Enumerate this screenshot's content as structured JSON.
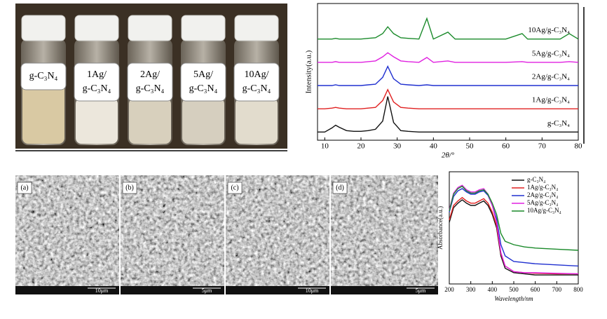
{
  "photo": {
    "labels": [
      [
        "g-C₃N₄"
      ],
      [
        "1Ag/",
        "g-C₃N₄"
      ],
      [
        "2Ag/",
        "g-C₃N₄"
      ],
      [
        "5Ag/",
        "g-C₃N₄"
      ],
      [
        "10Ag/",
        "g-C₃N₄"
      ]
    ]
  },
  "sem": {
    "panels": [
      {
        "label": "(a)",
        "scale": "10μm"
      },
      {
        "label": "(b)",
        "scale": "5μm"
      },
      {
        "label": "(c)",
        "scale": "10μm"
      },
      {
        "label": "(d)",
        "scale": "5μm"
      }
    ]
  },
  "chart_data": [
    {
      "type": "line",
      "x_label": "2θ/°",
      "y_label": "Intensity(a.u.)",
      "labels_inline": true,
      "xlim": [
        8,
        80
      ],
      "xticks": [
        10,
        20,
        30,
        40,
        50,
        60,
        70,
        80
      ],
      "ylim": [
        0,
        100
      ],
      "x": [
        8,
        10,
        12,
        13,
        14,
        16,
        18,
        20,
        22,
        24,
        26,
        27.4,
        29,
        31,
        33,
        36,
        38.2,
        40,
        44,
        46,
        50,
        55,
        60,
        64.5,
        66,
        70,
        75,
        77.5,
        80
      ],
      "series": [
        {
          "name": "10Ag/g-C₃N₄",
          "color": "#1a8a2a",
          "values": [
            74,
            74,
            74,
            74.5,
            74,
            74,
            74,
            74,
            74.5,
            75,
            78,
            83,
            78,
            75,
            74.5,
            74,
            89,
            74,
            79,
            74,
            74,
            74,
            74,
            78,
            74,
            74,
            74,
            78,
            74
          ]
        },
        {
          "name": "5Ag/g-C₃N₄",
          "color": "#e020e0",
          "values": [
            57,
            57,
            57,
            57.5,
            57,
            57,
            57,
            57,
            57.5,
            58,
            61,
            64,
            61,
            58,
            57.5,
            57,
            60.5,
            57,
            58,
            57,
            57,
            57,
            57,
            57.5,
            57,
            57,
            57,
            57.5,
            57
          ]
        },
        {
          "name": "2Ag/g-C₃N₄",
          "color": "#2030d0",
          "values": [
            40,
            40,
            40,
            40.5,
            40,
            40,
            40,
            40,
            40.5,
            41,
            46,
            54,
            45,
            41,
            40.5,
            40,
            40.5,
            40,
            40,
            40,
            40,
            40,
            40,
            40,
            40,
            40,
            40,
            40,
            40
          ]
        },
        {
          "name": "1Ag/g-C₃N₄",
          "color": "#e02020",
          "values": [
            23,
            23,
            23.5,
            24,
            23.5,
            23,
            23,
            23,
            23.5,
            24,
            29,
            37,
            28,
            24,
            23.5,
            23,
            23,
            23,
            23,
            23,
            23,
            23,
            23,
            23,
            23,
            23,
            23,
            23,
            23
          ]
        },
        {
          "name": "g-C₃N₄",
          "color": "#111111",
          "values": [
            6,
            6,
            9,
            11,
            9.5,
            7,
            6.5,
            6.5,
            7,
            8,
            14,
            32,
            13,
            7,
            6.5,
            6,
            6,
            6,
            6,
            6,
            6,
            6,
            6,
            6,
            6,
            6,
            6,
            6,
            6
          ]
        }
      ]
    },
    {
      "type": "line",
      "x_label": "Wavelength/nm",
      "y_label": "Absorbance(a.u.)",
      "legend": "upper right",
      "xlim": [
        200,
        800
      ],
      "xticks": [
        200,
        300,
        400,
        500,
        600,
        700,
        800
      ],
      "ylim": [
        0,
        100
      ],
      "x": [
        200,
        220,
        240,
        260,
        280,
        300,
        320,
        340,
        360,
        380,
        400,
        420,
        440,
        460,
        500,
        550,
        600,
        700,
        800
      ],
      "series": [
        {
          "name": "g-C₃N₄",
          "color": "#111111",
          "values": [
            55,
            68,
            72,
            75,
            72,
            70,
            70,
            72,
            74,
            70,
            62,
            50,
            25,
            14,
            10,
            9,
            8,
            8,
            8
          ]
        },
        {
          "name": "1Ag/g-C₃N₄",
          "color": "#e02020",
          "values": [
            57,
            70,
            74,
            77,
            74,
            72,
            72,
            74,
            76,
            72,
            64,
            52,
            27,
            16,
            11,
            10,
            9.5,
            9,
            9
          ]
        },
        {
          "name": "2Ag/g-C₃N₄",
          "color": "#2030d0",
          "values": [
            64,
            78,
            83,
            85,
            82,
            80,
            80,
            82,
            83,
            79,
            70,
            58,
            35,
            25,
            20,
            19,
            18,
            17,
            16
          ]
        },
        {
          "name": "5Ag/g-C₃N₄",
          "color": "#e020e0",
          "values": [
            66,
            81,
            86,
            88,
            84,
            82,
            82,
            84,
            85,
            80,
            70,
            55,
            28,
            16,
            11,
            10,
            10,
            9.5,
            9
          ]
        },
        {
          "name": "10Ag/g-C₃N₄",
          "color": "#1a8a2a",
          "values": [
            65,
            80,
            85,
            87,
            83,
            81,
            81,
            83,
            84,
            80,
            72,
            62,
            45,
            38,
            35,
            33,
            32,
            31,
            30
          ]
        }
      ]
    }
  ]
}
